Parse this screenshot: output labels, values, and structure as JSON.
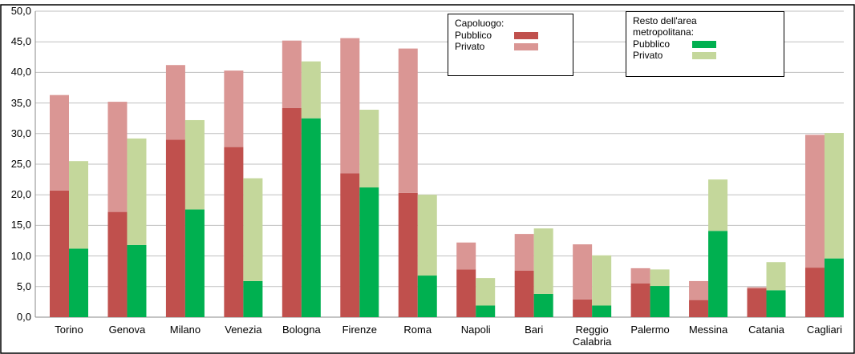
{
  "chart_data": {
    "type": "grouped-stacked-bar",
    "categories": [
      "Torino",
      "Genova",
      "Milano",
      "Venezia",
      "Bologna",
      "Firenze",
      "Roma",
      "Napoli",
      "Bari",
      "Reggio Calabria",
      "Palermo",
      "Messina",
      "Catania",
      "Cagliari"
    ],
    "stack_titles": [
      "Capoluogo:",
      "Resto dell'area metropolitana:"
    ],
    "series": [
      {
        "name": "Pubblico",
        "stack": 0,
        "color": "#c0504d",
        "values": [
          20.7,
          17.2,
          29.0,
          27.8,
          34.2,
          23.5,
          20.3,
          7.8,
          7.6,
          2.9,
          5.5,
          2.8,
          4.7,
          8.1
        ]
      },
      {
        "name": "Privato",
        "stack": 0,
        "color": "#da9694",
        "values": [
          15.6,
          18.0,
          12.2,
          12.5,
          11.0,
          22.1,
          23.6,
          4.4,
          6.0,
          9.0,
          2.5,
          3.1,
          0.2,
          21.7
        ]
      },
      {
        "name": "Pubblico",
        "stack": 1,
        "color": "#00b050",
        "values": [
          11.2,
          11.8,
          17.6,
          5.9,
          32.5,
          21.2,
          6.8,
          1.9,
          3.8,
          1.9,
          5.1,
          14.1,
          4.4,
          9.6
        ]
      },
      {
        "name": "Privato",
        "stack": 1,
        "color": "#c4d79b",
        "values": [
          14.3,
          17.4,
          14.6,
          16.8,
          9.3,
          12.7,
          13.2,
          4.5,
          10.7,
          8.2,
          2.7,
          8.4,
          4.6,
          20.5
        ]
      }
    ],
    "ylim": [
      0,
      50
    ],
    "yticks": [
      {
        "value": 0,
        "label": "0,0"
      },
      {
        "value": 5,
        "label": "5,0"
      },
      {
        "value": 10,
        "label": "10,0"
      },
      {
        "value": 15,
        "label": "15,0"
      },
      {
        "value": 20,
        "label": "20,0"
      },
      {
        "value": 25,
        "label": "25,0"
      },
      {
        "value": 30,
        "label": "30,0"
      },
      {
        "value": 35,
        "label": "35,0"
      },
      {
        "value": 40,
        "label": "40,0"
      },
      {
        "value": 45,
        "label": "45,0"
      },
      {
        "value": 50,
        "label": "50,0"
      }
    ],
    "grid": true
  }
}
